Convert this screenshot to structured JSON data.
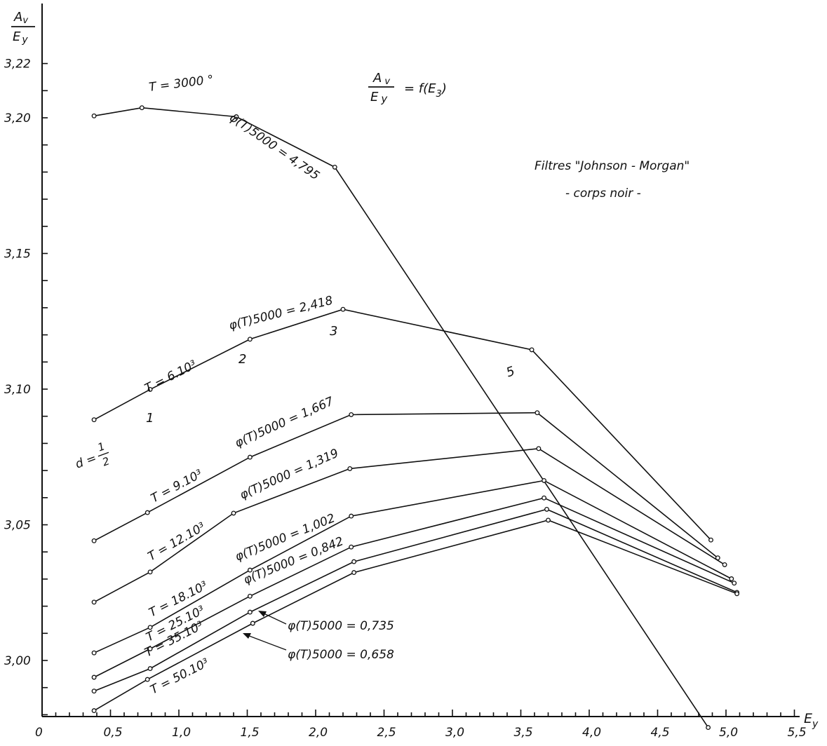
{
  "chart_data": {
    "type": "line",
    "title": "Av/Ey = f(E3)",
    "subtitle": "Filtres \"Johnson - Morgan\"",
    "note": "- corps noir -",
    "xlabel": "Ey",
    "ylabel": "Av/Ey",
    "xlim": [
      0,
      5.5
    ],
    "ylim": [
      2.98,
      3.23
    ],
    "x_ticks": [
      "0",
      "0,5",
      "1,0",
      "1,5",
      "2,0",
      "2,5",
      "3,0",
      "3,5",
      "4,0",
      "4,5",
      "5,0",
      "5,5"
    ],
    "y_ticks": [
      "3,00",
      "3,05",
      "3,10",
      "3,15",
      "3,20",
      "3,22"
    ],
    "series": [
      {
        "label": "T = 3000 °",
        "phi": "φ(T)5000 = 4,795",
        "x": [
          0.38,
          0.73,
          1.42,
          2.14,
          4.87
        ],
        "y": [
          3.2007,
          3.2037,
          3.2004,
          3.1818,
          2.9753
        ]
      },
      {
        "label": "T = 6.10³",
        "phi": "φ(T)5000 = 2,418",
        "x": [
          0.38,
          0.79,
          1.52,
          2.2,
          3.58,
          4.89
        ],
        "y": [
          3.0887,
          3.0999,
          3.1184,
          3.1294,
          3.1145,
          3.0444
        ]
      },
      {
        "label": "T = 9.10³",
        "phi": "φ(T)5000 = 1,667",
        "x": [
          0.38,
          0.77,
          1.52,
          2.26,
          3.62,
          4.94
        ],
        "y": [
          3.0441,
          3.0545,
          3.0749,
          3.0906,
          3.0913,
          3.0378
        ]
      },
      {
        "label": "T = 12.10³",
        "phi": "φ(T)5000 = 1,319",
        "x": [
          0.38,
          0.79,
          1.4,
          2.25,
          3.63,
          4.99
        ],
        "y": [
          3.0215,
          3.0326,
          3.0543,
          3.0707,
          3.0781,
          3.0353
        ]
      },
      {
        "label": "T = 18.10³",
        "phi": "φ(T)5000 = 1,002",
        "x": [
          0.38,
          0.79,
          1.52,
          2.26,
          3.67,
          5.04
        ],
        "y": [
          3.0028,
          3.0122,
          3.0333,
          3.0532,
          3.0663,
          3.0301
        ]
      },
      {
        "label": "T = 25.10³",
        "phi": "φ(T)5000 = 0,842",
        "x": [
          0.38,
          0.79,
          1.52,
          2.26,
          3.67,
          5.06
        ],
        "y": [
          2.9938,
          3.0043,
          3.0237,
          3.0418,
          3.0599,
          3.0285
        ]
      },
      {
        "label": "T = 35.10³",
        "phi": "φ(T)5000 = 0,735",
        "x": [
          0.38,
          0.79,
          1.52,
          2.28,
          3.69,
          5.08
        ],
        "y": [
          2.9887,
          2.997,
          3.0178,
          3.0364,
          3.0557,
          3.0251
        ]
      },
      {
        "label": "T = 50.10³",
        "phi": "φ(T)5000 = 0,658",
        "x": [
          0.38,
          0.77,
          1.54,
          2.28,
          3.7,
          5.08
        ],
        "y": [
          2.9815,
          2.993,
          3.0137,
          3.0324,
          3.0517,
          3.0246
        ]
      }
    ],
    "annotations": [
      "d = 1/2",
      "1",
      "2",
      "3",
      "5"
    ]
  }
}
